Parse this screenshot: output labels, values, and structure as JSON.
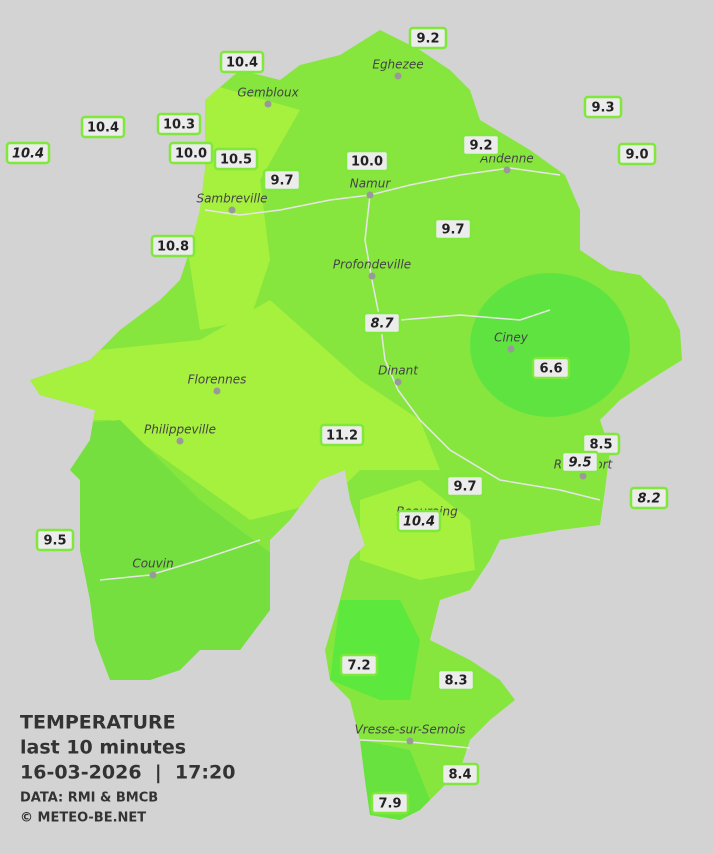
{
  "legend": {
    "title": "TEMPERATURE",
    "period": "last 10 minutes",
    "datetime": "16-03-2026  |  17:20",
    "source": "DATA: RMI & BMCB",
    "copyright": "© METEO-BE.NET"
  },
  "cities": [
    {
      "name": "Eghezee"
    },
    {
      "name": "Gembloux"
    },
    {
      "name": "Andenne"
    },
    {
      "name": "Namur"
    },
    {
      "name": "Sambreville"
    },
    {
      "name": "Profondeville"
    },
    {
      "name": "Ciney"
    },
    {
      "name": "Dinant"
    },
    {
      "name": "Florennes"
    },
    {
      "name": "Philippeville"
    },
    {
      "name": "Rochefort"
    },
    {
      "name": "Beauraing"
    },
    {
      "name": "Couvin"
    },
    {
      "name": "Vresse-sur-Semois"
    }
  ],
  "stations": [
    {
      "label": "9.2"
    },
    {
      "label": "10.4"
    },
    {
      "label": "10.4"
    },
    {
      "label": "10.3"
    },
    {
      "label": "10.4",
      "italic": true
    },
    {
      "label": "10.0"
    },
    {
      "label": "10.5"
    },
    {
      "label": "9.7"
    },
    {
      "label": "10.0"
    },
    {
      "label": "9.2"
    },
    {
      "label": "9.3"
    },
    {
      "label": "9.0"
    },
    {
      "label": "10.8"
    },
    {
      "label": "9.7"
    },
    {
      "label": "8.7",
      "italic": true
    },
    {
      "label": "6.6"
    },
    {
      "label": "11.2"
    },
    {
      "label": "8.5"
    },
    {
      "label": "9.5",
      "italic": true
    },
    {
      "label": "9.7"
    },
    {
      "label": "8.2",
      "italic": true
    },
    {
      "label": "10.4",
      "italic": true
    },
    {
      "label": "9.5"
    },
    {
      "label": "7.2"
    },
    {
      "label": "8.3"
    },
    {
      "label": "8.4"
    },
    {
      "label": "7.9"
    }
  ]
}
